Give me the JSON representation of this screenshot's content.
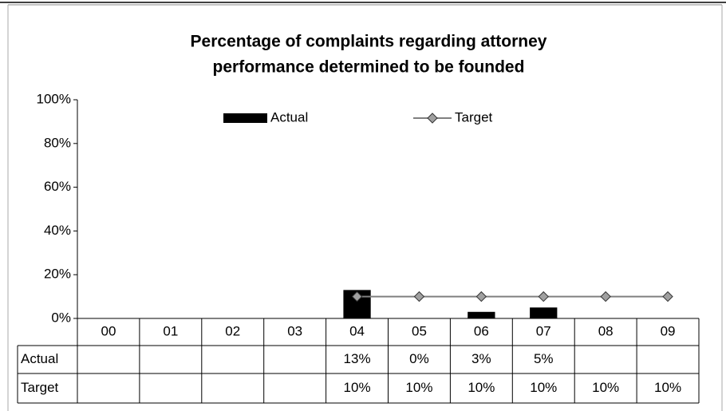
{
  "chart_data": {
    "type": "bar",
    "title": [
      "Percentage of complaints regarding attorney",
      "performance determined to be founded"
    ],
    "categories": [
      "00",
      "01",
      "02",
      "03",
      "04",
      "05",
      "06",
      "07",
      "08",
      "09"
    ],
    "series": [
      {
        "name": "Actual",
        "type": "bar",
        "color": "#000000",
        "values": [
          null,
          null,
          null,
          null,
          13,
          0,
          3,
          5,
          null,
          null
        ],
        "value_labels": [
          null,
          null,
          null,
          null,
          "13%",
          "0%",
          "3%",
          "5%",
          null,
          null
        ]
      },
      {
        "name": "Target",
        "type": "line",
        "color": "#808080",
        "marker_color": "#a0a0a0",
        "values": [
          null,
          null,
          null,
          null,
          10,
          10,
          10,
          10,
          10,
          10
        ],
        "value_labels": [
          null,
          null,
          null,
          null,
          "10%",
          "10%",
          "10%",
          "10%",
          "10%",
          "10%"
        ]
      }
    ],
    "ylim": [
      0,
      100
    ],
    "yticks": [
      {
        "value": 0,
        "label": "0%"
      },
      {
        "value": 20,
        "label": "20%"
      },
      {
        "value": 40,
        "label": "40%"
      },
      {
        "value": 60,
        "label": "60%"
      },
      {
        "value": 80,
        "label": "80%"
      },
      {
        "value": 100,
        "label": "100%"
      }
    ],
    "legend": "top",
    "grid": false,
    "data_table": true
  }
}
